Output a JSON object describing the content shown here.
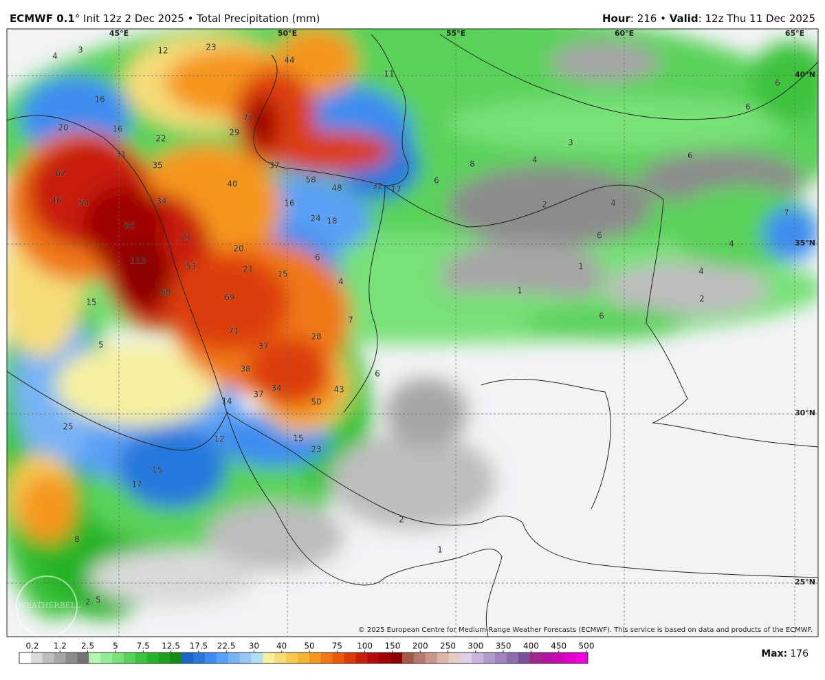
{
  "header": {
    "title_bold": "ECMWF 0.1",
    "title_rest": "° Init 12z 2 Dec 2025 • Total Precipitation (mm)",
    "hour_label": "Hour",
    "hour_text": ": 216 • ",
    "valid_label": "Valid",
    "valid_text": ": 12z Thu 11 Dec 2025"
  },
  "map": {
    "lon_labels": [
      "45°E",
      "50°E",
      "55°E",
      "60°E",
      "65°E"
    ],
    "lat_labels": [
      "40°N",
      "35°N",
      "30°N",
      "25°N"
    ],
    "labels": [
      4,
      3,
      12,
      23,
      44,
      11,
      16,
      71,
      20,
      16,
      22,
      29,
      31,
      35,
      37,
      67,
      40,
      58,
      48,
      32,
      17,
      6,
      8,
      4,
      3,
      6,
      6,
      6,
      46,
      54,
      34,
      16,
      24,
      18,
      2,
      4,
      6,
      86,
      21,
      20,
      113,
      6,
      21,
      53,
      15,
      4,
      1,
      4,
      4,
      7,
      68,
      69,
      1,
      2,
      15,
      71,
      28,
      6,
      37,
      7,
      38,
      6,
      34,
      37,
      43,
      14,
      50,
      25,
      12,
      15,
      23,
      15,
      17,
      2,
      1,
      8,
      2,
      5,
      5
    ],
    "copyright": "© 2025 European Centre for Medium-Range Weather Forecasts (ECMWF). This service is based on data and products of the ECMWF.",
    "watermark": "WEATHERBELL"
  },
  "legend": {
    "ticks": [
      0.2,
      1.2,
      2.5,
      5,
      7.5,
      12.5,
      17.5,
      22.5,
      30,
      40,
      50,
      75,
      100,
      150,
      200,
      250,
      300,
      350,
      400,
      450,
      500
    ],
    "colors": [
      "#ffffff",
      "#d9d9d9",
      "#bdbdbd",
      "#a6a6a6",
      "#8c8c8c",
      "#737373",
      "#b4f5b4",
      "#96eb96",
      "#78e178",
      "#5ad25a",
      "#3cc33c",
      "#28b428",
      "#1ea01e",
      "#148c14",
      "#1e64c8",
      "#2878dc",
      "#3c8cf0",
      "#5aa0f5",
      "#78b4f5",
      "#96c8f5",
      "#b4dcf5",
      "#f5f0a0",
      "#f5dc78",
      "#f5c850",
      "#f5b432",
      "#f5961e",
      "#f07814",
      "#e65a0a",
      "#dc3c0a",
      "#c81e0a",
      "#b40a0a",
      "#a00000",
      "#8c0000",
      "#a05a46",
      "#b4786e",
      "#c8968c",
      "#dcb4aa",
      "#e6ccc8",
      "#dcd0e6",
      "#c8b4dc",
      "#b49ccc",
      "#a082bc",
      "#8c6eaa",
      "#78509a",
      "#a0288c",
      "#b414a0",
      "#c80ab4",
      "#dc00c8",
      "#f000dc"
    ],
    "max_label": "Max:",
    "max_value": 176
  }
}
